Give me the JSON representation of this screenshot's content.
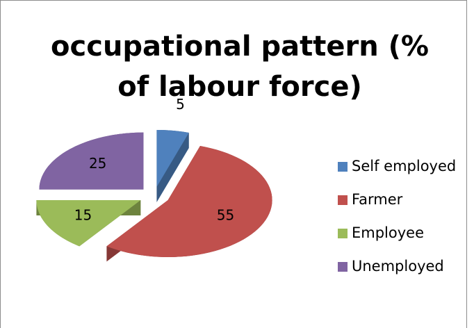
{
  "chart_data": {
    "type": "pie",
    "title": "occupational pattern (% of labour force)",
    "categories": [
      "Self employed",
      "Farmer",
      "Employee",
      "Unemployed"
    ],
    "values": [
      5,
      55,
      15,
      25
    ],
    "colors": [
      "#4f81bd",
      "#c0504d",
      "#9bbb59",
      "#8064a2"
    ],
    "legend": "right"
  }
}
